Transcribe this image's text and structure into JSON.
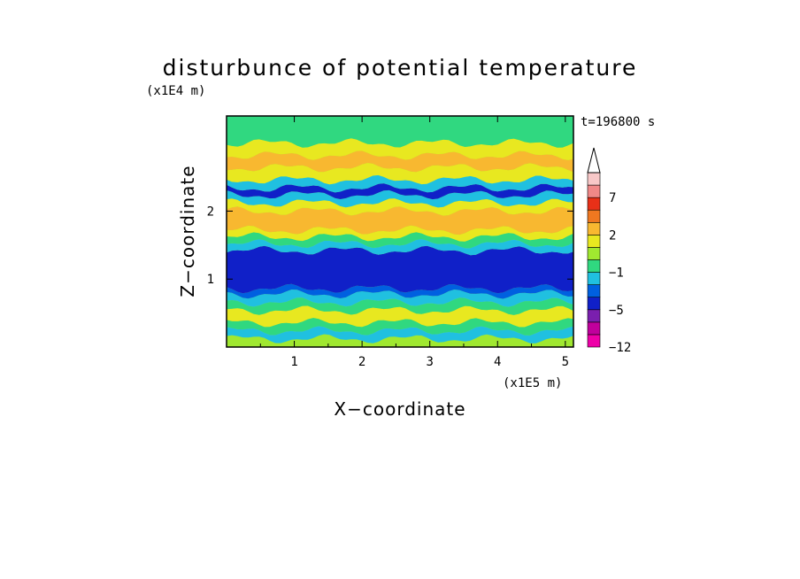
{
  "chart_data": {
    "type": "heatmap",
    "title": "disturbunce of potential temperature",
    "xlabel": "X−coordinate",
    "ylabel": "Z−coordinate",
    "x_unit": "(x1E5 m)",
    "y_unit": "(x1E4 m)",
    "time_label": "t=196800 s",
    "xlim": [
      0,
      5.12
    ],
    "ylim": [
      0,
      3.4
    ],
    "x_ticks": [
      {
        "value": 1,
        "label": "1"
      },
      {
        "value": 2,
        "label": "2"
      },
      {
        "value": 3,
        "label": "3"
      },
      {
        "value": 4,
        "label": "4"
      },
      {
        "value": 5,
        "label": "5"
      }
    ],
    "y_ticks": [
      {
        "value": 1,
        "label": "1"
      },
      {
        "value": 2,
        "label": "2"
      }
    ],
    "colorbar": {
      "levels": [
        -12,
        -10,
        -8,
        -5,
        -4,
        -2,
        -1,
        0,
        1,
        2,
        3,
        5,
        7,
        8,
        10
      ],
      "labels": [
        {
          "value": -12,
          "label": "−12"
        },
        {
          "value": -5,
          "label": "−5"
        },
        {
          "value": -1,
          "label": "−1"
        },
        {
          "value": 2,
          "label": "2"
        },
        {
          "value": 7,
          "label": "7"
        }
      ],
      "colors": [
        "#ee00a8",
        "#c0009c",
        "#7a1fae",
        "#1020c8",
        "#0060e0",
        "#20c0e0",
        "#30d880",
        "#a0e830",
        "#e8e820",
        "#f8b830",
        "#f07820",
        "#e83018",
        "#f08888",
        "#f8c8c8"
      ],
      "extend": "max"
    },
    "bands": [
      {
        "z0": 0.0,
        "z1": 0.12,
        "value": 0.5
      },
      {
        "z0": 0.12,
        "z1": 0.24,
        "value": -1.5
      },
      {
        "z0": 0.24,
        "z1": 0.36,
        "value": -0.5
      },
      {
        "z0": 0.36,
        "z1": 0.54,
        "value": 1.5
      },
      {
        "z0": 0.54,
        "z1": 0.66,
        "value": -0.5
      },
      {
        "z0": 0.66,
        "z1": 0.78,
        "value": -1.5
      },
      {
        "z0": 0.78,
        "z1": 0.86,
        "value": -3.0
      },
      {
        "z0": 0.86,
        "z1": 1.42,
        "value": -4.5
      },
      {
        "z0": 1.42,
        "z1": 1.52,
        "value": -1.5
      },
      {
        "z0": 1.52,
        "z1": 1.62,
        "value": -0.5
      },
      {
        "z0": 1.62,
        "z1": 1.72,
        "value": 1.5
      },
      {
        "z0": 1.72,
        "z1": 2.0,
        "value": 2.5
      },
      {
        "z0": 2.0,
        "z1": 2.12,
        "value": 1.5
      },
      {
        "z0": 2.12,
        "z1": 2.24,
        "value": -1.5
      },
      {
        "z0": 2.24,
        "z1": 2.34,
        "value": -4.5
      },
      {
        "z0": 2.34,
        "z1": 2.46,
        "value": -1.5
      },
      {
        "z0": 2.46,
        "z1": 2.64,
        "value": 1.5
      },
      {
        "z0": 2.64,
        "z1": 2.82,
        "value": 2.5
      },
      {
        "z0": 2.82,
        "z1": 3.0,
        "value": 1.5
      },
      {
        "z0": 3.0,
        "z1": 3.4,
        "value": -0.5
      }
    ]
  }
}
